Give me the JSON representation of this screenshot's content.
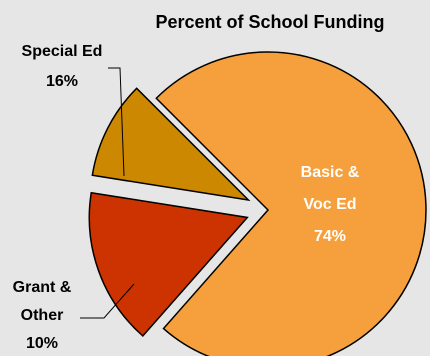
{
  "chart_data": {
    "type": "pie",
    "title": "Percent of School Funding",
    "slices": [
      {
        "name_lines": [
          "Basic &",
          "Voc Ed"
        ],
        "pct_label": "74%",
        "value": 74,
        "color": "#f5a03c"
      },
      {
        "name_lines": [
          "Special Ed"
        ],
        "pct_label": "16%",
        "value": 16,
        "color": "#cc3300"
      },
      {
        "name_lines": [
          "Grant &",
          "Other"
        ],
        "pct_label": "10%",
        "value": 10,
        "color": "#cc8800"
      }
    ],
    "legend": "none"
  }
}
